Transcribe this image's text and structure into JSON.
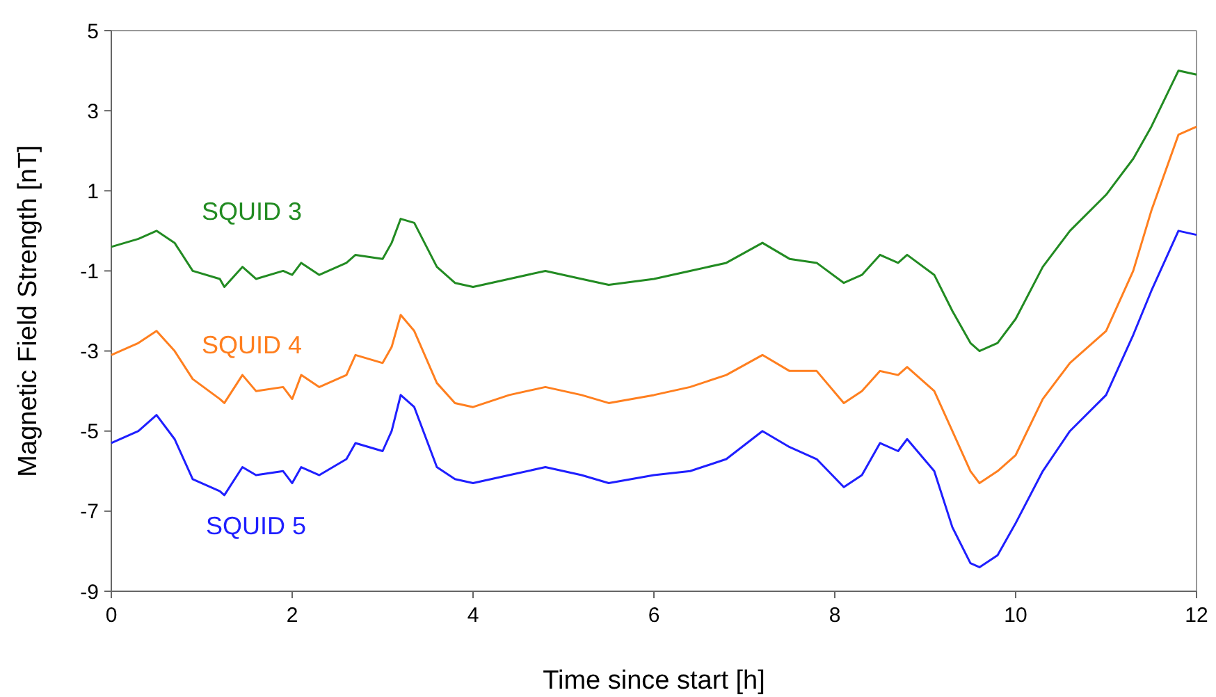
{
  "chart_data": {
    "type": "line",
    "xlabel": "Time since start [h]",
    "ylabel": "Magnetic Field Strength [nT]",
    "x": [
      0,
      0.3,
      0.5,
      0.7,
      0.9,
      1.2,
      1.25,
      1.45,
      1.6,
      1.9,
      2.0,
      2.1,
      2.3,
      2.6,
      2.7,
      3.0,
      3.1,
      3.2,
      3.35,
      3.6,
      3.8,
      4.0,
      4.4,
      4.8,
      5.2,
      5.5,
      6.0,
      6.4,
      6.8,
      7.2,
      7.5,
      7.8,
      8.1,
      8.3,
      8.5,
      8.7,
      8.8,
      9.1,
      9.3,
      9.5,
      9.6,
      9.8,
      10.0,
      10.3,
      10.6,
      11.0,
      11.3,
      11.5,
      11.8,
      12
    ],
    "series": [
      {
        "name": "SQUID 3",
        "color": "#228b22",
        "values": [
          -0.4,
          -0.2,
          0.0,
          -0.3,
          -1.0,
          -1.2,
          -1.4,
          -0.9,
          -1.2,
          -1.0,
          -1.1,
          -0.8,
          -1.1,
          -0.8,
          -0.6,
          -0.7,
          -0.3,
          0.3,
          0.2,
          -0.9,
          -1.3,
          -1.4,
          -1.2,
          -1.0,
          -1.2,
          -1.35,
          -1.2,
          -1.0,
          -0.8,
          -0.3,
          -0.7,
          -0.8,
          -1.3,
          -1.1,
          -0.6,
          -0.8,
          -0.6,
          -1.1,
          -2.0,
          -2.8,
          -3.0,
          -2.8,
          -2.2,
          -0.9,
          0.0,
          0.9,
          1.8,
          2.6,
          4.0,
          3.9
        ]
      },
      {
        "name": "SQUID 4",
        "color": "#ff7f1f",
        "values": [
          -3.1,
          -2.8,
          -2.5,
          -3.0,
          -3.7,
          -4.2,
          -4.3,
          -3.6,
          -4.0,
          -3.9,
          -4.2,
          -3.6,
          -3.9,
          -3.6,
          -3.1,
          -3.3,
          -2.9,
          -2.1,
          -2.5,
          -3.8,
          -4.3,
          -4.4,
          -4.1,
          -3.9,
          -4.1,
          -4.3,
          -4.1,
          -3.9,
          -3.6,
          -3.1,
          -3.5,
          -3.5,
          -4.3,
          -4.0,
          -3.5,
          -3.6,
          -3.4,
          -4.0,
          -5.0,
          -6.0,
          -6.3,
          -6.0,
          -5.6,
          -4.2,
          -3.3,
          -2.5,
          -1.0,
          0.5,
          2.4,
          2.6
        ]
      },
      {
        "name": "SQUID 5",
        "color": "#1f1fff",
        "values": [
          -5.3,
          -5.0,
          -4.6,
          -5.2,
          -6.2,
          -6.5,
          -6.6,
          -5.9,
          -6.1,
          -6.0,
          -6.3,
          -5.9,
          -6.1,
          -5.7,
          -5.3,
          -5.5,
          -5.0,
          -4.1,
          -4.4,
          -5.9,
          -6.2,
          -6.3,
          -6.1,
          -5.9,
          -6.1,
          -6.3,
          -6.1,
          -6.0,
          -5.7,
          -5.0,
          -5.4,
          -5.7,
          -6.4,
          -6.1,
          -5.3,
          -5.5,
          -5.2,
          -6.0,
          -7.4,
          -8.3,
          -8.4,
          -8.1,
          -7.3,
          -6.0,
          -5.0,
          -4.1,
          -2.6,
          -1.5,
          0.0,
          -0.1
        ]
      }
    ],
    "xlim": [
      0,
      12
    ],
    "xticks": [
      0,
      2,
      4,
      6,
      8,
      10,
      12
    ],
    "ylim": [
      -9,
      5
    ],
    "yticks": [
      -9,
      -7,
      -5,
      -3,
      -1,
      1,
      3,
      5
    ],
    "grid": false,
    "marker": "none",
    "line_style": "solid"
  }
}
